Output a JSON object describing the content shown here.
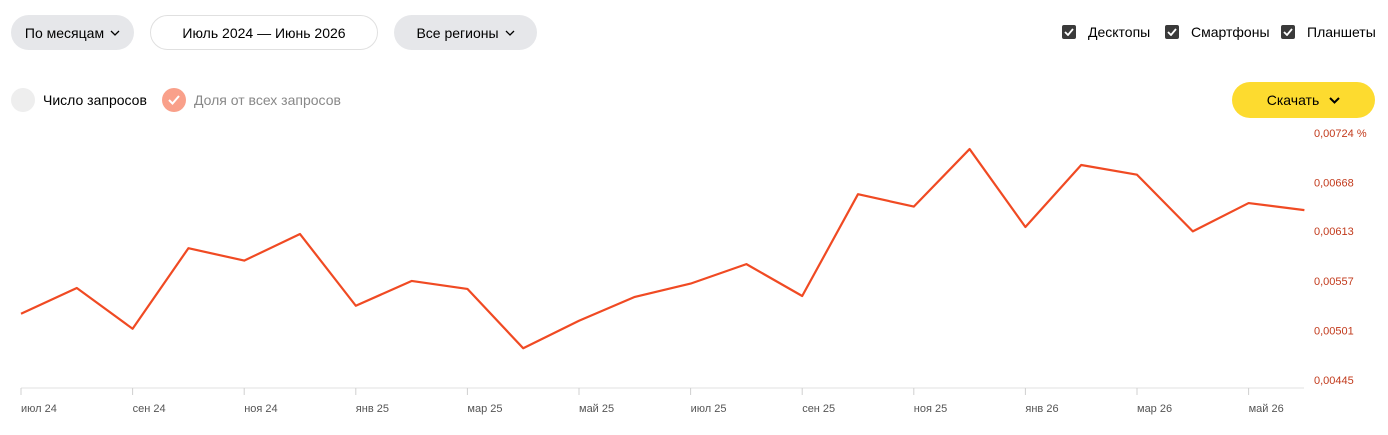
{
  "controls": {
    "period_mode": "По месяцам",
    "date_range": "Июль 2024 — Июнь 2026",
    "region": "Все регионы",
    "devices": [
      "Десктопы",
      "Смартфоны",
      "Планшеты"
    ],
    "metric_count": "Число запросов",
    "download": "Скачать"
  },
  "chart_data": {
    "type": "line",
    "categories": [
      "июл 24",
      null,
      "сен 24",
      null,
      "ноя 24",
      null,
      "янв 25",
      null,
      "мар 25",
      null,
      "май 25",
      null,
      "июл 25",
      null,
      "сен 25",
      null,
      "ноя 25",
      null,
      "янв 26",
      null,
      "мар 26",
      null,
      "май 26",
      null
    ],
    "series": [
      {
        "name": "Доля от всех запросов",
        "color": "#f04a23",
        "values": [
          0.00521,
          0.0055,
          0.00504,
          0.00595,
          0.00581,
          0.00611,
          0.0053,
          0.00558,
          0.00549,
          0.00482,
          0.00513,
          0.0054,
          0.00555,
          0.00577,
          0.00541,
          0.00656,
          0.00642,
          0.00707,
          0.00619,
          0.00689,
          0.00678,
          0.00614,
          0.00646,
          0.00638
        ]
      }
    ],
    "ylim": [
      0.00445,
      0.00724
    ],
    "yticks": [
      {
        "value": 0.00445,
        "label": "0,00445"
      },
      {
        "value": 0.00501,
        "label": "0,00501"
      },
      {
        "value": 0.00557,
        "label": "0,00557"
      },
      {
        "value": 0.00613,
        "label": "0,00613"
      },
      {
        "value": 0.00668,
        "label": "0,00668"
      },
      {
        "value": 0.00724,
        "label": "0,00724 %"
      }
    ],
    "tick_color": "#c23a1c"
  }
}
